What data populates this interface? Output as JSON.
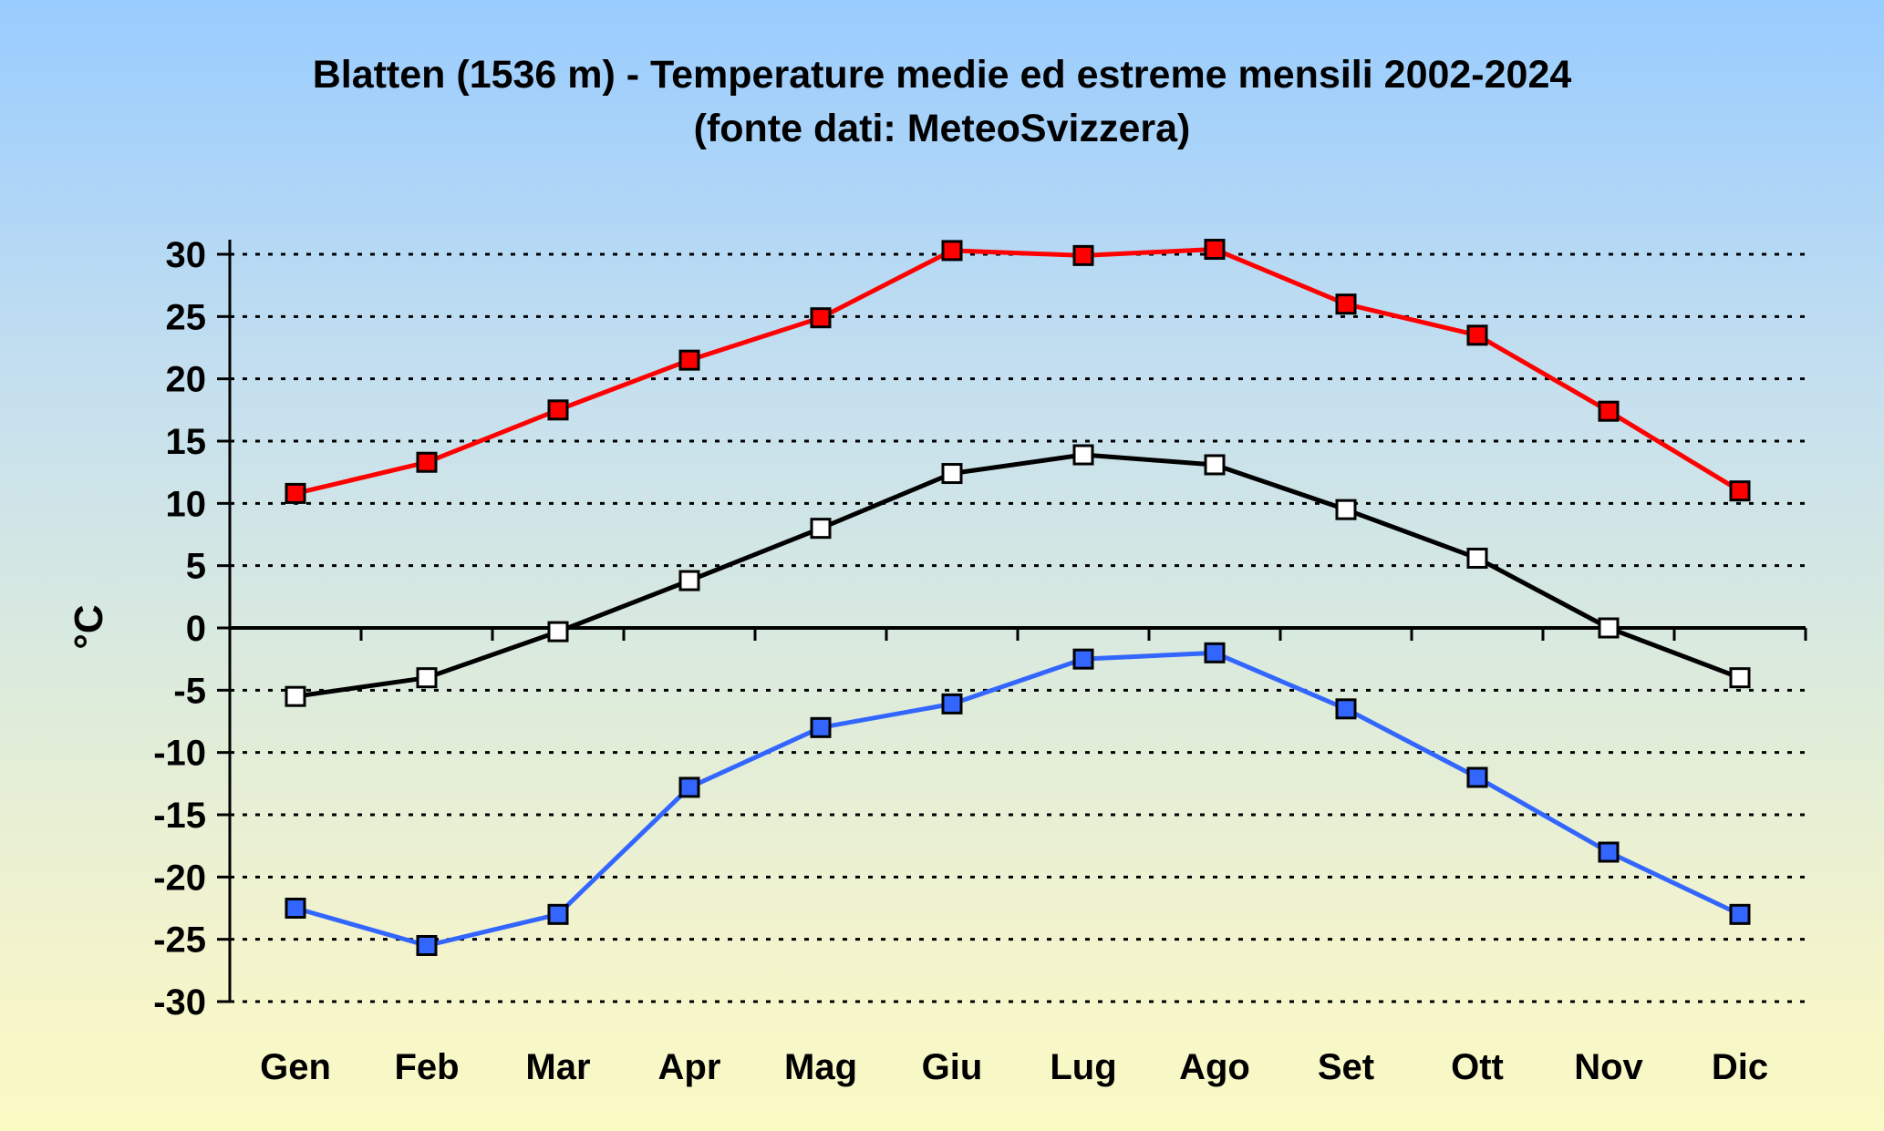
{
  "chart_data": {
    "type": "line",
    "title": "Blatten (1536 m) - Temperature medie ed estreme mensili 2002-2024",
    "subtitle": "(fonte dati: MeteoSvizzera)",
    "xlabel": "",
    "ylabel": "°C",
    "ylim": [
      -30,
      30
    ],
    "ytick_step": 5,
    "grid": true,
    "categories": [
      "Gen",
      "Feb",
      "Mar",
      "Apr",
      "Mag",
      "Giu",
      "Lug",
      "Ago",
      "Set",
      "Ott",
      "Nov",
      "Dic"
    ],
    "series": [
      {
        "color": "#ff0000",
        "marker_fill": "#ff0000",
        "values": [
          10.8,
          13.3,
          17.5,
          21.5,
          24.9,
          30.3,
          29.9,
          30.4,
          26.0,
          23.5,
          17.4,
          11.0
        ]
      },
      {
        "color": "#000000",
        "marker_fill": "#ffffff",
        "values": [
          -5.5,
          -4.0,
          -0.3,
          3.8,
          8.0,
          12.4,
          13.9,
          13.1,
          9.5,
          5.6,
          0.0,
          -4.0
        ]
      },
      {
        "color": "#3366ff",
        "marker_fill": "#3366ff",
        "values": [
          -22.5,
          -25.5,
          -23.0,
          -12.8,
          -8.0,
          -6.1,
          -2.5,
          -2.0,
          -6.5,
          -12.0,
          -18.0,
          -23.0
        ]
      }
    ]
  }
}
